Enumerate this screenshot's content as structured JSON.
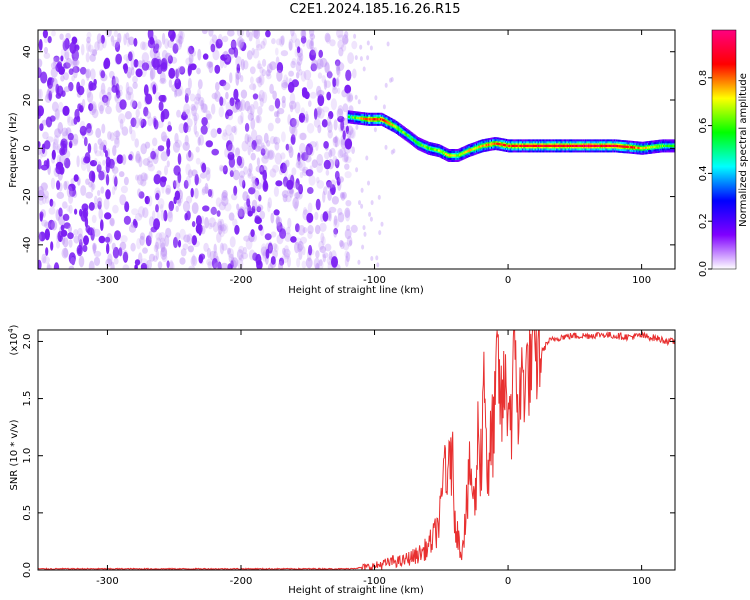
{
  "title": "C2E1.2024.185.16.26.R15",
  "chart_data": [
    {
      "type": "heatmap",
      "xlabel": "Height of straight line (km)",
      "ylabel": "Frequency (Hz)",
      "xlim": [
        -352,
        125
      ],
      "ylim": [
        -50,
        49
      ],
      "xticks": [
        -300,
        -200,
        -100,
        0,
        100
      ],
      "yticks": [
        -40,
        -20,
        0,
        20,
        40
      ],
      "noise_region": {
        "x_range": [
          -352,
          -115
        ],
        "y_range": [
          -50,
          49
        ],
        "level": "low (0.0-0.2)"
      },
      "ridge": {
        "x": [
          -120,
          -105,
          -95,
          -85,
          -75,
          -68,
          -60,
          -52,
          -45,
          -38,
          -30,
          -20,
          -10,
          0,
          20,
          40,
          60,
          80,
          100,
          115,
          125
        ],
        "y": [
          13,
          12,
          12,
          9,
          5,
          2,
          0,
          -1,
          -3,
          -3,
          -1,
          1,
          2,
          1,
          1,
          1,
          1,
          1,
          0,
          1,
          1
        ],
        "amplitude": [
          0.5,
          0.85,
          0.85,
          0.7,
          0.55,
          0.6,
          0.6,
          0.65,
          0.7,
          0.65,
          0.7,
          0.75,
          0.8,
          0.85,
          0.9,
          0.9,
          0.95,
          0.9,
          0.75,
          0.6,
          0.55
        ]
      },
      "colorbar": {
        "label": "Normalized spectral amplitude",
        "ticks": [
          0.0,
          0.2,
          0.4,
          0.6,
          0.8
        ],
        "range": [
          0,
          1
        ],
        "colors": [
          "#ffffff",
          "#8000ff",
          "#0000ff",
          "#00ffff",
          "#00ff00",
          "#ffff00",
          "#ff0000",
          "#ff0080"
        ]
      },
      "colors": {
        "noise": "#7b2cf5",
        "ridge_core": "#ff0000"
      }
    },
    {
      "type": "line",
      "xlabel": "Height of straight line (km)",
      "ylabel": "SNR (10 * v/v)",
      "multiplier_label": "(x10",
      "multiplier_exponent": "4",
      "multiplier_close": ")",
      "xlim": [
        -352,
        125
      ],
      "ylim": [
        0,
        2.1
      ],
      "xticks": [
        -300,
        -200,
        -100,
        0,
        100
      ],
      "yticks": [
        0.0,
        0.5,
        1.0,
        1.5,
        2.0
      ],
      "series": [
        {
          "color": "#e83030",
          "x": [
            -352,
            -300,
            -200,
            -120,
            -110,
            -100,
            -95,
            -90,
            -85,
            -80,
            -75,
            -70,
            -65,
            -60,
            -55,
            -50,
            -47,
            -45,
            -43,
            -40,
            -37,
            -35,
            -33,
            -30,
            -28,
            -25,
            -22,
            -20,
            -18,
            -15,
            -12,
            -10,
            -8,
            -5,
            -3,
            0,
            3,
            5,
            8,
            10,
            15,
            20,
            25,
            30,
            35,
            40,
            50,
            60,
            70,
            80,
            90,
            100,
            110,
            120,
            125
          ],
          "y": [
            0.01,
            0.01,
            0.01,
            0.01,
            0.02,
            0.03,
            0.05,
            0.06,
            0.08,
            0.07,
            0.1,
            0.12,
            0.15,
            0.2,
            0.3,
            0.5,
            1.1,
            0.6,
            1.2,
            0.5,
            0.25,
            0.15,
            0.35,
            0.65,
            0.9,
            0.5,
            1.3,
            0.9,
            1.9,
            0.7,
            1.2,
            1.3,
            1.9,
            1.35,
            1.6,
            1.5,
            1.35,
            2.05,
            1.3,
            1.65,
            1.75,
            1.85,
            1.9,
            2.0,
            2.02,
            2.04,
            2.05,
            2.05,
            2.06,
            2.05,
            2.04,
            2.05,
            2.03,
            2.0,
            2.0
          ]
        }
      ]
    }
  ]
}
